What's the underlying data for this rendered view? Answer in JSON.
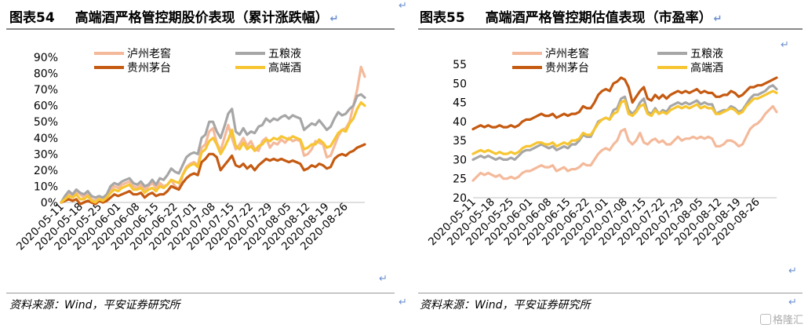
{
  "left": {
    "title_num": "图表54",
    "title_text": "高端酒严格管控期股价表现（累计涨跌幅）",
    "source": "资料来源：Wind，平安证券研究所"
  },
  "right": {
    "title_num": "图表55",
    "title_text": "高端酒严格管控期估值表现（市盈率）",
    "source": "资料来源：Wind，平安证券研究所"
  },
  "return_glyph": "↵",
  "watermark": "格隆汇",
  "colors": {
    "luzhou": "#f4b99a",
    "wuliangye": "#a6a6a6",
    "moutai": "#c55a11",
    "gaoduan": "#f7c531"
  },
  "chart_data": [
    {
      "type": "line",
      "title": "",
      "x_ticks": [
        "2020-05-11",
        "2020-05-18",
        "2020-05-25",
        "2020-06-01",
        "2020-06-08",
        "2020-06-15",
        "2020-06-22",
        "2020-07-01",
        "2020-07-08",
        "2020-07-15",
        "2020-07-22",
        "2020-07-29",
        "2020-08-05",
        "2020-08-12",
        "2020-08-19",
        "2020-08-26"
      ],
      "y_ticks": [
        "0%",
        "10%",
        "20%",
        "30%",
        "40%",
        "50%",
        "60%",
        "70%",
        "80%",
        "90%"
      ],
      "ylim": [
        0,
        90
      ],
      "y_unit": "%",
      "legend": [
        "泸州老窖",
        "五粮液",
        "贵州茅台",
        "高端酒"
      ],
      "n_points": 81,
      "series": [
        {
          "name": "泸州老窖",
          "color_key": "luzhou",
          "values": [
            0,
            3,
            6,
            4,
            7,
            5,
            3,
            6,
            2,
            1,
            3,
            1,
            4,
            8,
            10,
            9,
            11,
            12,
            13,
            10,
            9,
            11,
            8,
            10,
            12,
            9,
            12,
            10,
            11,
            14,
            10,
            8,
            17,
            22,
            24,
            25,
            23,
            34,
            36,
            44,
            46,
            37,
            32,
            40,
            48,
            40,
            33,
            36,
            40,
            35,
            38,
            33,
            32,
            38,
            40,
            34,
            37,
            36,
            39,
            37,
            40,
            38,
            39,
            38,
            29,
            30,
            33,
            38,
            37,
            36,
            28,
            29,
            35,
            41,
            45,
            46,
            50,
            60,
            70,
            84,
            78
          ]
        },
        {
          "name": "五粮液",
          "color_key": "wuliangye",
          "values": [
            0,
            4,
            7,
            5,
            8,
            6,
            5,
            7,
            4,
            3,
            4,
            3,
            5,
            10,
            12,
            11,
            13,
            14,
            15,
            12,
            11,
            13,
            10,
            11,
            14,
            11,
            15,
            14,
            17,
            21,
            19,
            18,
            23,
            28,
            30,
            31,
            30,
            40,
            42,
            50,
            50,
            44,
            40,
            47,
            55,
            58,
            44,
            42,
            46,
            42,
            44,
            43,
            47,
            48,
            52,
            50,
            52,
            51,
            53,
            54,
            52,
            54,
            53,
            52,
            45,
            47,
            49,
            48,
            51,
            48,
            45,
            47,
            52,
            56,
            54,
            55,
            58,
            60,
            66,
            67,
            65
          ]
        },
        {
          "name": "贵州茅台",
          "color_key": "moutai",
          "values": [
            0,
            1,
            2,
            1,
            2,
            -1,
            0,
            1,
            0,
            -1,
            1,
            0,
            1,
            3,
            5,
            4,
            5,
            6,
            7,
            5,
            5,
            6,
            3,
            5,
            6,
            4,
            5,
            5,
            7,
            10,
            9,
            8,
            12,
            15,
            17,
            18,
            17,
            25,
            27,
            30,
            30,
            28,
            20,
            23,
            26,
            29,
            23,
            22,
            24,
            21,
            23,
            20,
            23,
            25,
            27,
            26,
            27,
            26,
            27,
            26,
            25,
            26,
            25,
            24,
            20,
            21,
            23,
            22,
            24,
            23,
            21,
            22,
            27,
            29,
            30,
            29,
            31,
            32,
            34,
            35,
            36
          ]
        },
        {
          "name": "高端酒",
          "color_key": "gaoduan",
          "values": [
            0,
            2,
            4,
            3,
            5,
            2,
            2,
            4,
            1,
            0,
            2,
            1,
            3,
            6,
            8,
            7,
            9,
            10,
            11,
            8,
            8,
            9,
            6,
            8,
            9,
            7,
            10,
            9,
            11,
            14,
            13,
            12,
            17,
            21,
            23,
            24,
            22,
            31,
            33,
            38,
            40,
            36,
            30,
            34,
            39,
            45,
            35,
            33,
            37,
            33,
            35,
            32,
            35,
            36,
            39,
            38,
            40,
            39,
            41,
            40,
            39,
            41,
            40,
            39,
            33,
            34,
            36,
            36,
            39,
            37,
            34,
            35,
            39,
            43,
            45,
            44,
            49,
            52,
            58,
            62,
            60
          ]
        }
      ]
    },
    {
      "type": "line",
      "title": "",
      "x_ticks": [
        "2020-05-11",
        "2020-05-18",
        "2020-05-25",
        "2020-06-01",
        "2020-06-08",
        "2020-06-15",
        "2020-06-22",
        "2020-07-01",
        "2020-07-08",
        "2020-07-15",
        "2020-07-22",
        "2020-07-29",
        "2020-08-05",
        "2020-08-12",
        "2020-08-19",
        "2020-08-26"
      ],
      "y_ticks": [
        "20",
        "25",
        "30",
        "35",
        "40",
        "45",
        "50",
        "55"
      ],
      "ylim": [
        20,
        55
      ],
      "legend": [
        "泸州老窖",
        "五粮液",
        "贵州茅台",
        "高端酒"
      ],
      "n_points": 81,
      "series": [
        {
          "name": "泸州老窖",
          "color_key": "luzhou",
          "values": [
            24.5,
            25.5,
            26.5,
            26,
            26.5,
            26,
            25.5,
            26,
            25,
            25,
            25.5,
            25,
            25.5,
            26.5,
            27,
            27,
            27.5,
            28,
            28.5,
            28,
            28,
            28.5,
            27,
            27.5,
            28,
            27,
            27.5,
            27.5,
            28,
            29,
            28.5,
            28.5,
            30,
            31.5,
            32.5,
            33,
            32.5,
            34,
            35,
            37.5,
            38,
            35,
            34,
            35,
            37,
            34.5,
            34,
            35,
            35.5,
            34.5,
            35,
            34,
            34,
            35,
            36,
            35,
            35.5,
            35.5,
            36,
            35.5,
            36,
            35.5,
            36,
            35.5,
            33.5,
            33.5,
            34,
            35,
            35,
            34.5,
            33.5,
            34,
            36,
            38,
            39,
            39.5,
            40.5,
            42,
            43,
            44,
            42.5
          ]
        },
        {
          "name": "五粮液",
          "color_key": "wuliangye",
          "values": [
            30,
            30.5,
            31,
            30.5,
            31,
            30.5,
            30,
            30.5,
            30,
            30,
            30.5,
            30,
            31,
            32,
            32.5,
            32.5,
            33,
            33.5,
            34,
            33.5,
            33,
            33.5,
            32.5,
            33,
            33.5,
            33,
            34,
            34,
            35,
            36.5,
            36,
            36,
            38,
            40,
            40.5,
            41,
            40.5,
            43,
            43.5,
            46,
            46.5,
            43,
            42,
            43,
            45,
            46,
            42.5,
            42,
            43.5,
            42,
            43,
            42.5,
            44,
            44.5,
            45,
            44.5,
            45,
            44.5,
            45,
            45.5,
            44.5,
            45,
            44.5,
            44.5,
            42,
            42.5,
            43,
            43,
            44,
            43.5,
            42.5,
            43,
            44.5,
            46,
            47,
            47,
            47.5,
            48,
            49,
            49.5,
            48.5
          ]
        },
        {
          "name": "贵州茅台",
          "color_key": "moutai",
          "values": [
            38,
            38.5,
            39,
            38.5,
            39,
            38.5,
            38.5,
            39,
            38.5,
            38.5,
            39,
            38.5,
            39,
            40,
            40.5,
            40.5,
            41,
            41.5,
            42,
            41.5,
            41.5,
            42,
            41,
            41.5,
            42,
            41.5,
            42,
            42,
            42.5,
            44,
            43.5,
            43.5,
            45,
            47,
            48,
            48.5,
            48,
            50,
            50.5,
            51.5,
            51,
            49,
            45,
            46.5,
            48,
            49,
            46,
            45.5,
            47,
            46,
            47,
            46,
            47,
            47.5,
            48,
            47.5,
            48,
            47.5,
            48,
            48.5,
            47.5,
            48,
            47.5,
            47.5,
            46.5,
            46.5,
            47,
            47,
            48,
            47.5,
            46.5,
            47,
            48,
            49,
            49,
            49.5,
            49.5,
            50,
            50.5,
            51,
            51.5
          ]
        },
        {
          "name": "高端酒",
          "color_key": "gaoduan",
          "values": [
            31.5,
            32,
            32.5,
            32,
            32.5,
            32,
            31.5,
            32,
            31.5,
            31.5,
            32,
            31.5,
            32,
            33,
            33.5,
            33.5,
            34,
            34.5,
            34.5,
            34,
            34,
            34.5,
            33.5,
            34,
            34.5,
            34,
            35,
            35,
            35.5,
            37,
            36.5,
            36.5,
            38,
            39.5,
            40.5,
            41,
            40.5,
            42,
            42.5,
            45,
            45.5,
            42,
            41.5,
            42.5,
            44,
            44.5,
            42,
            41.5,
            43,
            42,
            42.5,
            42,
            43,
            43.5,
            44,
            43.5,
            44,
            43.5,
            44,
            44.5,
            43.5,
            44,
            43.5,
            43.5,
            42,
            42,
            42.5,
            43,
            43.5,
            43,
            42,
            42.5,
            44,
            45,
            46,
            46,
            46.5,
            47,
            47.5,
            48,
            47.5
          ]
        }
      ]
    }
  ]
}
